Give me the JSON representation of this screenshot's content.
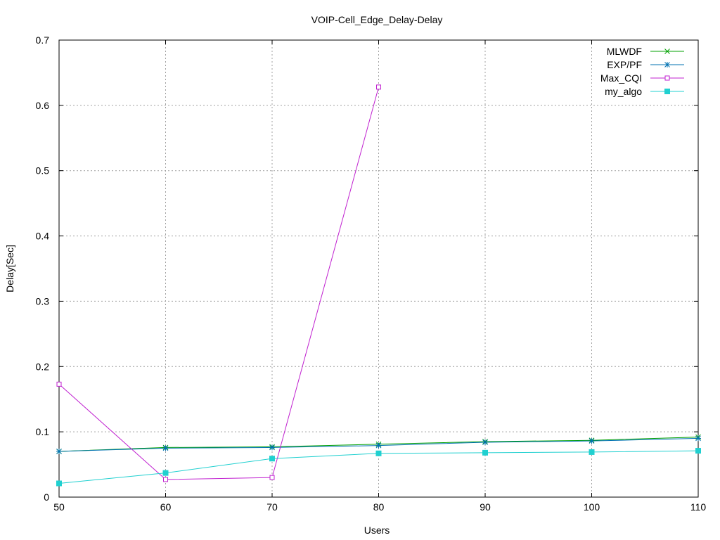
{
  "chart_data": {
    "type": "line",
    "title": "VOIP-Cell_Edge_Delay-Delay",
    "xlabel": "Users",
    "ylabel": "Delay[Sec]",
    "xlim": [
      50,
      110
    ],
    "ylim": [
      0,
      0.7
    ],
    "x_ticks": [
      "50",
      "60",
      "70",
      "80",
      "90",
      "100",
      "110"
    ],
    "y_ticks": [
      "0",
      "0.1",
      "0.2",
      "0.3",
      "0.4",
      "0.5",
      "0.6",
      "0.7"
    ],
    "grid": true,
    "legend_position": "top-right",
    "series": [
      {
        "name": "MLWDF",
        "color": "#00a000",
        "marker": "x",
        "x": [
          50,
          60,
          70,
          80,
          90,
          100,
          110
        ],
        "y": [
          0.07,
          0.076,
          0.077,
          0.081,
          0.085,
          0.087,
          0.092
        ]
      },
      {
        "name": "EXP/PF",
        "color": "#0072b2",
        "marker": "star",
        "x": [
          50,
          60,
          70,
          80,
          90,
          100,
          110
        ],
        "y": [
          0.07,
          0.075,
          0.076,
          0.079,
          0.084,
          0.086,
          0.09
        ]
      },
      {
        "name": "Max_CQI",
        "color": "#c020d0",
        "marker": "open-square",
        "x": [
          50,
          60,
          70,
          80
        ],
        "y": [
          0.173,
          0.027,
          0.03,
          0.628
        ]
      },
      {
        "name": "my_algo",
        "color": "#20d0d0",
        "marker": "filled-square",
        "x": [
          50,
          60,
          70,
          80,
          90,
          100,
          110
        ],
        "y": [
          0.021,
          0.037,
          0.059,
          0.067,
          0.068,
          0.069,
          0.071
        ]
      }
    ]
  }
}
